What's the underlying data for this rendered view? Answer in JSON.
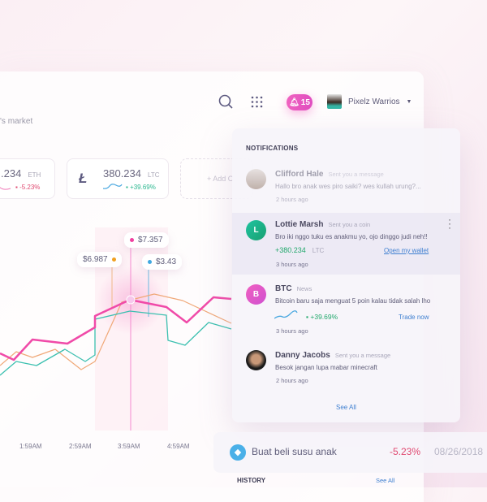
{
  "header": {
    "subtitle": "'s market",
    "notification_count": "15",
    "user_name": "Pixelz Warrios"
  },
  "coins": [
    {
      "value": ".234",
      "symbol": "ETH",
      "change": "-5.23%"
    },
    {
      "value": "380.234",
      "symbol": "LTC",
      "change": "+39.69%"
    }
  ],
  "add_coin": "+ Add C",
  "chart": {
    "tooltips": [
      "$6.987",
      "$7.357",
      "$3.43"
    ],
    "x_labels": [
      "1:59AM",
      "2:59AM",
      "3:59AM",
      "4:59AM"
    ],
    "colors": {
      "pink": "#f04aa8",
      "orange": "#f0a878",
      "teal": "#3cc0b0",
      "blue": "#4aa8e0"
    }
  },
  "notifications": {
    "title": "NOTIFICATIONS",
    "items": [
      {
        "name": "Clifford Hale",
        "action": "Sent you a message",
        "message": "Hallo bro anak wes piro saiki? wes kullah urung?...",
        "time": "2 hours ago"
      },
      {
        "name": "Lottie Marsh",
        "initial": "L",
        "action": "Sent you a coin",
        "message": "Bro iki nggo tuku es anakmu yo, ojo dinggo judi neh!!",
        "amount": "+380.234",
        "symbol": "LTC",
        "link": "Open my wallet",
        "time": "3 hours ago"
      },
      {
        "name": "BTC",
        "initial": "B",
        "action": "News",
        "message": "Bitcoin baru saja menguat 5 poin kalau tidak salah lho",
        "change": "+39.69%",
        "link": "Trade now",
        "time": "3 hours ago"
      },
      {
        "name": "Danny Jacobs",
        "action": "Sent you a message",
        "message": "Besok jangan lupa mabar minecraft",
        "time": "2 hours ago"
      }
    ],
    "see_all": "See All"
  },
  "transaction": {
    "title": "Buat beli susu anak",
    "change": "-5.23%",
    "date": "08/26/2018"
  },
  "history": {
    "title": "HISTORY",
    "see_all": "See All"
  }
}
